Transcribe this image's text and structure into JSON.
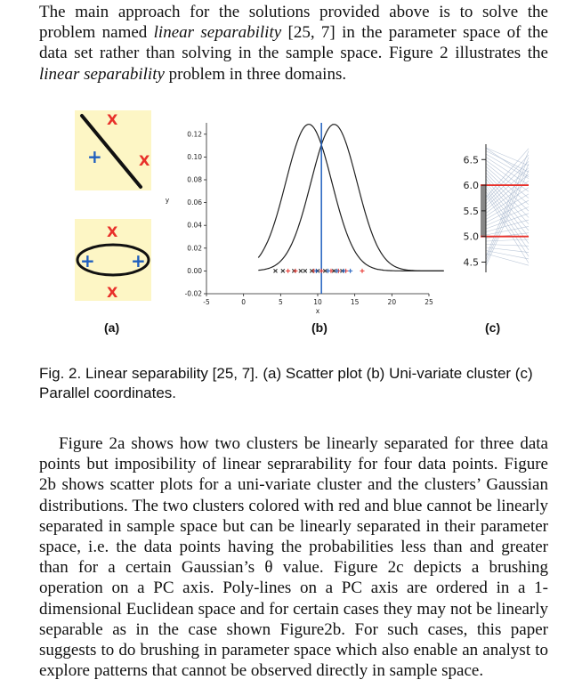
{
  "paragraph1": {
    "part1": "The main approach for the solutions provided above is to solve the problem named ",
    "em1": "linear separability",
    "part2": " [25, 7] in the parameter space of the data set rather than solving in the sample space. Figure 2 illustrates the ",
    "em2": "linear separability",
    "part3": " problem in three domains."
  },
  "figure": {
    "panel_a": {
      "label": "(a)"
    },
    "panel_b": {
      "label": "(b)"
    },
    "panel_c": {
      "label": "(c)"
    },
    "colors": {
      "red": "#e8302a",
      "blue": "#1f5fbf",
      "highlight": "#fdf6c5",
      "line": "#222222"
    }
  },
  "chart_data": [
    {
      "type": "line",
      "series_type": "gaussian curves with 1-D scatter",
      "xlabel": "x",
      "ylabel": "y",
      "xlim": [
        -5,
        25
      ],
      "ylim": [
        -0.02,
        0.13
      ],
      "x_ticks": [
        "-5",
        "0",
        "5",
        "10",
        "15",
        "20",
        "25"
      ],
      "y_ticks": [
        "-0.02",
        "0.00",
        "0.02",
        "0.04",
        "0.06",
        "0.08",
        "0.10",
        "0.12"
      ],
      "series": [
        {
          "mean": 8.8,
          "sd": 3.1
        },
        {
          "mean": 12.2,
          "sd": 3.1
        }
      ],
      "vertical_line_x": 10.5,
      "scatter_red": [
        6,
        7,
        9.5,
        10.5,
        11.8,
        12.8,
        13.8,
        16
      ],
      "scatter_black": [
        4.3,
        5.3,
        6.8,
        7.7,
        8.3,
        9.2,
        10,
        11,
        12.2,
        13.3
      ],
      "scatter_blue": [
        9.8,
        11.4,
        12.6,
        13.5,
        14.4
      ]
    },
    {
      "type": "parallel-coordinates",
      "y_ticks": [
        "4.5",
        "5.0",
        "5.5",
        "6.0",
        "6.5"
      ],
      "ylim": [
        4.3,
        6.8
      ],
      "brush_range": [
        5.0,
        6.0
      ]
    }
  ],
  "caption": "Fig. 2.  Linear separability [25, 7]. (a) Scatter plot (b) Uni-variate cluster (c) Parallel coordinates.",
  "paragraph2": {
    "first_line": "Figure 2a shows how two clusters be linearly separated for three data points but imposibility of linear seprarability for four data points. Figure 2b shows scatter plots for a uni-variate cluster and the clusters’ Gaussian distributions.  The two clusters colored with red and blue cannot be linearly separated in sample space but can be linearly separated in their parameter space, i.e. the data points having the probabilities less than and greater than for a certain Gaussian’s  θ  value. Figure 2c depicts a brushing operation on a PC axis.  Poly-lines on a PC axis are ordered in a 1-dimensional Euclidean space and for certain cases they may not be linearly separable as in the case shown Figure2b. For such cases, this paper suggests to do brushing in parameter space which also enable an analyst to explore patterns that cannot be observed directly in sample space."
  }
}
